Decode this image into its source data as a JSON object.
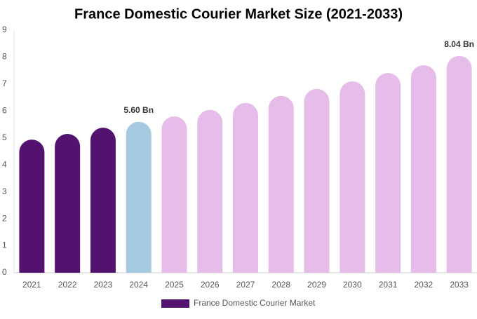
{
  "chart_data": {
    "type": "bar",
    "title": "France Domestic Courier Market Size (2021-2033)",
    "categories": [
      "2021",
      "2022",
      "2023",
      "2024",
      "2025",
      "2026",
      "2027",
      "2028",
      "2029",
      "2030",
      "2031",
      "2032",
      "2033"
    ],
    "series": [
      {
        "name": "France Domestic Courier Market",
        "color": "#541270",
        "colors": [
          "#541270",
          "#541270",
          "#541270",
          "#a5cae0",
          "#e6bde8",
          "#e6bde8",
          "#e6bde8",
          "#e6bde8",
          "#e6bde8",
          "#e6bde8",
          "#e6bde8",
          "#e6bde8",
          "#e6bde8"
        ],
        "values": [
          4.94,
          5.15,
          5.38,
          5.6,
          5.8,
          6.04,
          6.3,
          6.56,
          6.82,
          7.1,
          7.41,
          7.7,
          8.04
        ],
        "value_labels": [
          null,
          null,
          null,
          "5.60 Bn",
          null,
          null,
          null,
          null,
          null,
          null,
          null,
          null,
          "8.04 Bn"
        ]
      }
    ],
    "ylim": [
      0,
      9
    ],
    "yticks": [
      0,
      1,
      2,
      3,
      4,
      5,
      6,
      7,
      8,
      9
    ],
    "grid": false
  }
}
